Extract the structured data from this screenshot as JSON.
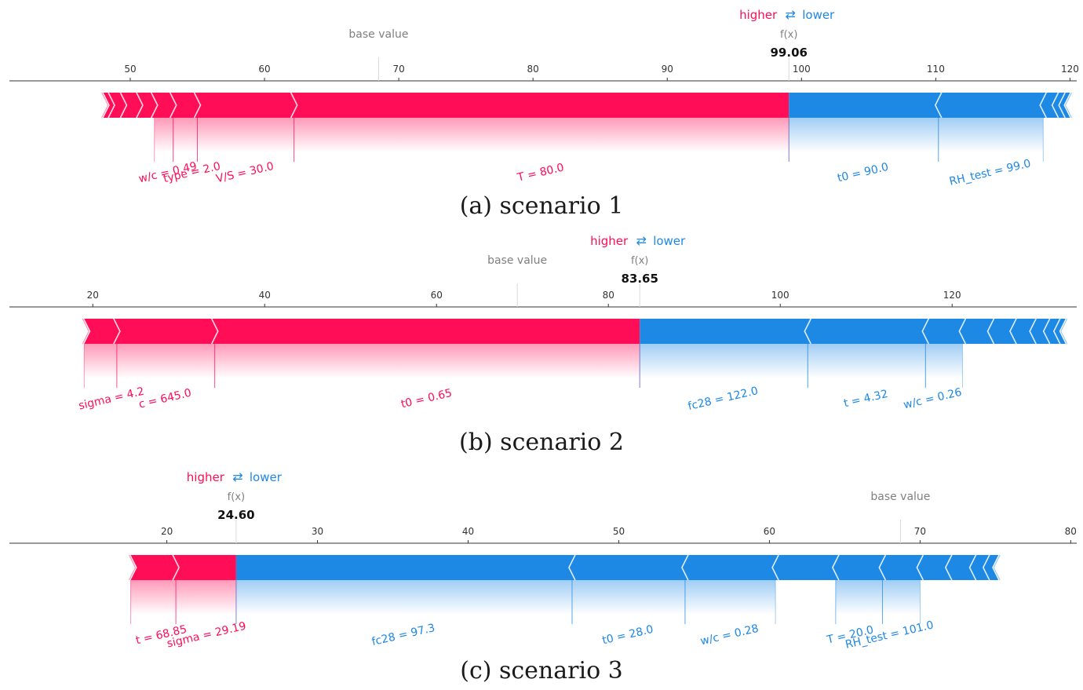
{
  "colors": {
    "positive": "#ff0d57",
    "negative": "#1e88e5",
    "axis": "#333333",
    "muted": "#808080"
  },
  "legend": {
    "higher": "higher",
    "arrows": "⇄",
    "lower": "lower"
  },
  "chart_data": [
    {
      "type": "force",
      "caption": "(a)  scenario 1",
      "base_value_label": "base value",
      "fx_label": "f(x)",
      "fx_value": "99.06",
      "output_value": 99.06,
      "base_value": 68.5,
      "xlim": [
        41,
        120.5
      ],
      "ticks": [
        50,
        60,
        70,
        80,
        90,
        100,
        110,
        120
      ],
      "tick_labels": [
        "50",
        "60",
        "70",
        "80",
        "90",
        "100",
        "110",
        "120"
      ],
      "left_end": 48,
      "right_end": 120,
      "positive_segments": [
        48,
        48.6,
        49.5,
        50.7,
        51.8,
        53.2,
        55.0,
        62.2,
        99.06
      ],
      "negative_segments": [
        99.06,
        110.2,
        118.0,
        118.9,
        119.4,
        120.0
      ],
      "labels": [
        {
          "text": "w/c  = 0.49",
          "side": "positive",
          "from": 53.2,
          "to": 51.8
        },
        {
          "text": "type = 2.0",
          "side": "positive",
          "from": 55.0,
          "to": 53.2
        },
        {
          "text": "V/S = 30.0",
          "side": "positive",
          "from": 62.2,
          "to": 55.0
        },
        {
          "text": "T = 80.0",
          "side": "positive",
          "from": 99.06,
          "to": 62.2
        },
        {
          "text": "t0 = 90.0",
          "side": "negative",
          "from": 99.06,
          "to": 110.2
        },
        {
          "text": "RH_test = 99.0",
          "side": "negative",
          "from": 110.2,
          "to": 118.0
        }
      ]
    },
    {
      "type": "force",
      "caption": "(b)  scenario 2",
      "base_value_label": "base value",
      "fx_label": "f(x)",
      "fx_value": "83.65",
      "output_value": 83.65,
      "base_value": 69.4,
      "xlim": [
        10.3,
        134.5
      ],
      "ticks": [
        20,
        40,
        60,
        80,
        100,
        120
      ],
      "tick_labels": [
        "20",
        "40",
        "60",
        "80",
        "100",
        "120"
      ],
      "left_end": 19,
      "right_end": 133.2,
      "positive_segments": [
        19,
        22.8,
        34.2,
        83.65
      ],
      "negative_segments": [
        83.65,
        103.2,
        116.9,
        121.2,
        124.5,
        127.1,
        129.4,
        131.0,
        132.2,
        133.2
      ],
      "labels": [
        {
          "text": "sigma = 4.2",
          "side": "positive",
          "from": 22.8,
          "to": 19
        },
        {
          "text": "c = 645.0",
          "side": "positive",
          "from": 34.2,
          "to": 22.8
        },
        {
          "text": "t0 = 0.65",
          "side": "positive",
          "from": 83.65,
          "to": 34.2
        },
        {
          "text": "fc28 = 122.0",
          "side": "negative",
          "from": 83.65,
          "to": 103.2
        },
        {
          "text": "t = 4.32",
          "side": "negative",
          "from": 103.2,
          "to": 116.9
        },
        {
          "text": "w/c  = 0.26",
          "side": "negative",
          "from": 116.9,
          "to": 121.2
        }
      ]
    },
    {
      "type": "force",
      "caption": "(c)  scenario 3",
      "base_value_label": "base value",
      "fx_label": "f(x)",
      "fx_value": "24.60",
      "output_value": 24.6,
      "base_value": 68.7,
      "xlim": [
        9.55,
        80.4
      ],
      "ticks": [
        20,
        30,
        40,
        50,
        60,
        70,
        80
      ],
      "tick_labels": [
        "20",
        "30",
        "40",
        "50",
        "60",
        "70",
        "80"
      ],
      "left_end": 17.6,
      "right_end": 75.2,
      "positive_segments": [
        17.6,
        20.6,
        24.6
      ],
      "negative_segments": [
        24.6,
        46.9,
        54.4,
        60.4,
        64.4,
        67.5,
        70.0,
        71.9,
        73.5,
        74.4,
        75.2
      ],
      "labels": [
        {
          "text": "t = 68.85",
          "side": "positive",
          "from": 20.6,
          "to": 17.6
        },
        {
          "text": "sigma = 29.19",
          "side": "positive",
          "from": 24.6,
          "to": 20.6
        },
        {
          "text": "fc28 = 97.3",
          "side": "negative",
          "from": 24.6,
          "to": 46.9
        },
        {
          "text": "t0 = 28.0",
          "side": "negative",
          "from": 46.9,
          "to": 54.4
        },
        {
          "text": "w/c  = 0.28",
          "side": "negative",
          "from": 54.4,
          "to": 60.4
        },
        {
          "text": "T = 20.0",
          "side": "negative",
          "from": 64.4,
          "to": 67.5
        },
        {
          "text": "RH_test = 101.0",
          "side": "negative",
          "from": 67.5,
          "to": 70.0
        }
      ]
    }
  ]
}
